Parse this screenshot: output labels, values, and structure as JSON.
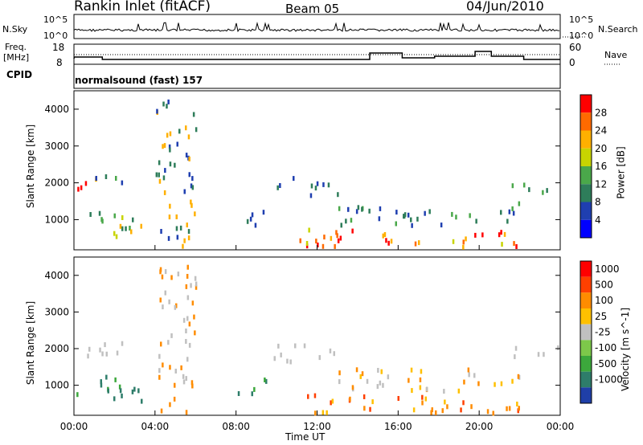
{
  "header": {
    "station": "Rankin Inlet (fitACF)",
    "beam": "Beam 05",
    "date": "04/Jun/2010"
  },
  "strip": {
    "nsky_label": "N.Sky",
    "nsky_top": "10^5",
    "nsky_bottom": "10^0",
    "nsearch_label": "N.Search",
    "nsearch_top": "10^5",
    "nsearch_bottom": "10^0",
    "freq_label_1": "Freq.",
    "freq_label_2": "[MHz]",
    "freq_top": "18",
    "freq_bottom": "8",
    "nave_label": "Nave",
    "nave_top": "60",
    "nave_bottom": "0",
    "cpid_label": "CPID",
    "cpid_value": "normalsound (fast) 157"
  },
  "chart_data": [
    {
      "type": "heatmap",
      "name": "power-panel",
      "ylabel": "Slant Range [km]",
      "xlabel": "",
      "ylim": [
        180,
        4500
      ],
      "yticks": [
        1000,
        2000,
        3000,
        4000
      ],
      "xlim_hours": [
        0,
        24
      ],
      "xticks": [
        "00:00",
        "04:00",
        "08:00",
        "12:00",
        "16:00",
        "20:00",
        "00:00"
      ],
      "colorbar": {
        "label": "Power [dB]",
        "ticks": [
          "4",
          "8",
          "12",
          "16",
          "20",
          "24",
          "28"
        ],
        "colors": [
          "#0000ff",
          "#1f3fb0",
          "#2e7d5a",
          "#4aa84a",
          "#c8d400",
          "#ffb000",
          "#ff6a00",
          "#ff0000"
        ]
      }
    },
    {
      "type": "heatmap",
      "name": "velocity-panel",
      "ylabel": "Slant Range [km]",
      "xlabel": "Time UT",
      "ylim": [
        180,
        4500
      ],
      "yticks": [
        1000,
        2000,
        3000,
        4000
      ],
      "xlim_hours": [
        0,
        24
      ],
      "xticks": [
        "00:00",
        "04:00",
        "08:00",
        "12:00",
        "16:00",
        "20:00",
        "00:00"
      ],
      "colorbar": {
        "label": "Velocity [m s^-1]",
        "ticks": [
          "1000",
          "500",
          "100",
          "25",
          "-25",
          "-100",
          "-500",
          "-1000"
        ],
        "colors": [
          "#1f3fa8",
          "#2e7d6a",
          "#3ca83c",
          "#7dc84a",
          "#c0c0c0",
          "#ffc000",
          "#ff8c00",
          "#ff4000",
          "#ff0000"
        ]
      }
    }
  ],
  "colors": {
    "ground_scatter": "#c0c0c0"
  }
}
